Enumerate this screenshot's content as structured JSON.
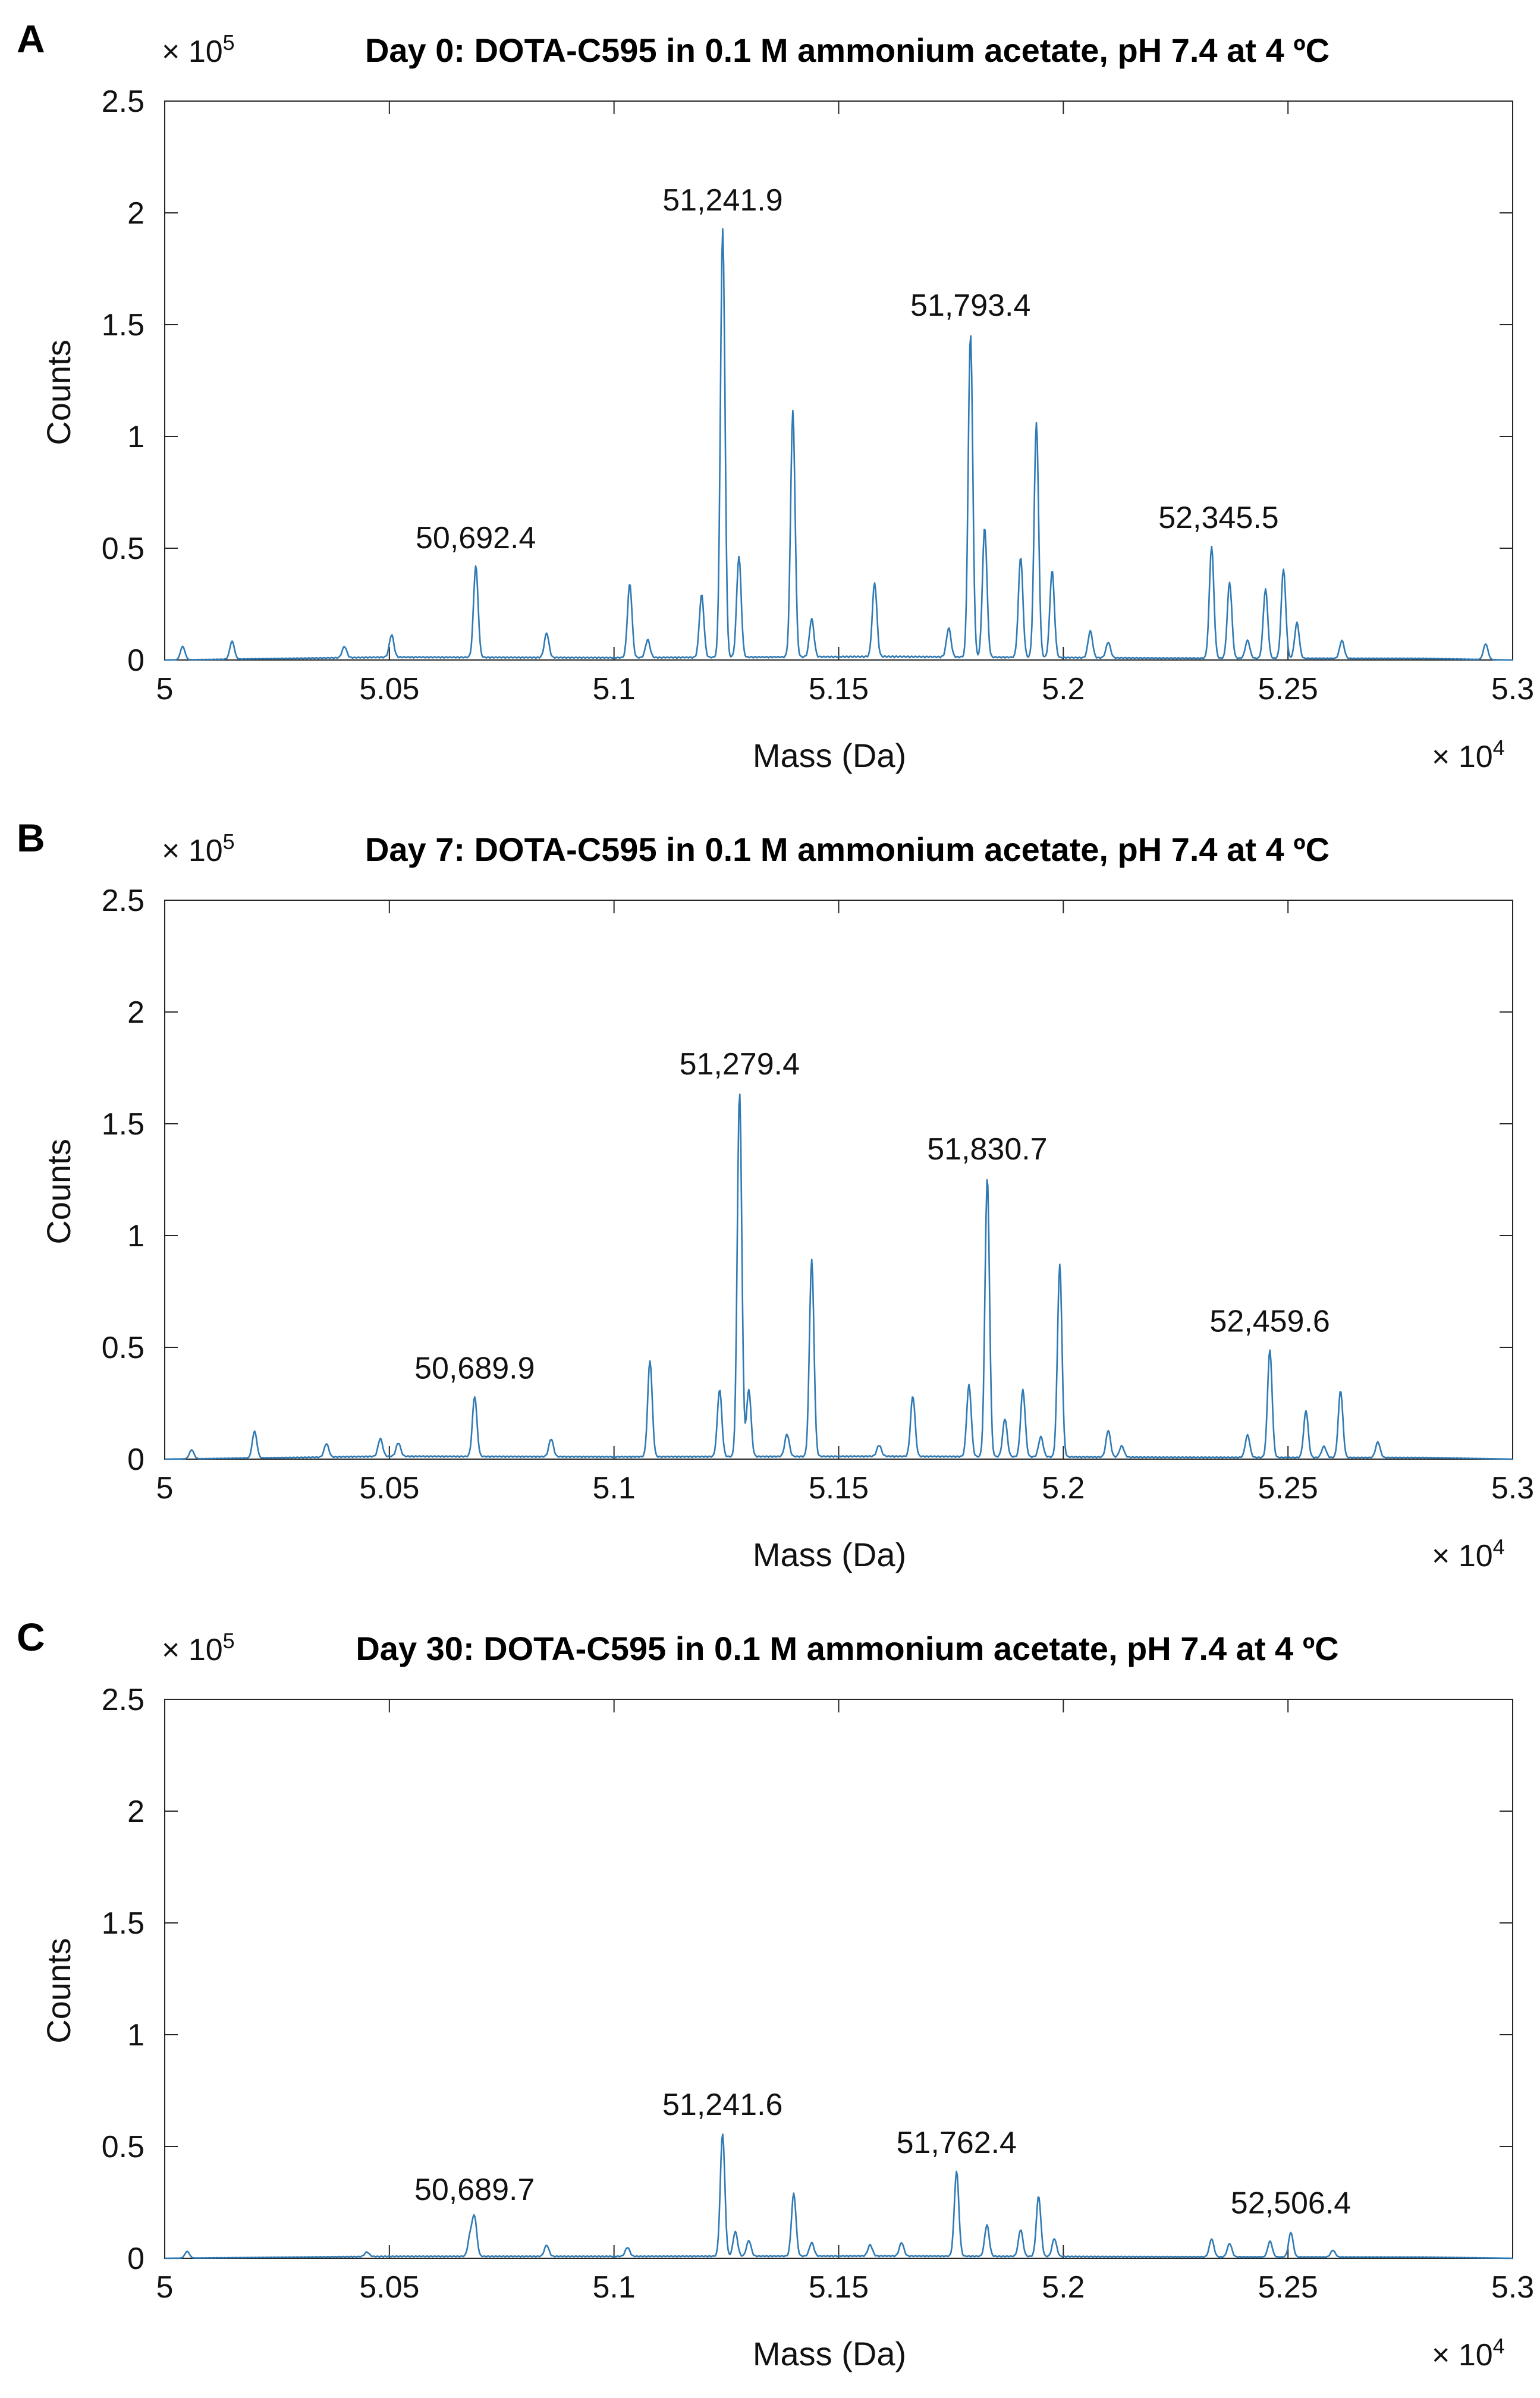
{
  "figure": {
    "panels": [
      {
        "letter": "A",
        "title": "Day 0: DOTA-C595 in 0.1 M ammonium acetate, pH 7.4 at 4 ºC",
        "y_multiplier": "× 10",
        "y_exponent": "5",
        "x_multiplier": "× 10",
        "x_exponent": "4",
        "xlabel": "Mass (Da)",
        "ylabel": "Counts"
      },
      {
        "letter": "B",
        "title": "Day 7: DOTA-C595 in 0.1 M ammonium acetate, pH 7.4 at 4 ºC",
        "y_multiplier": "× 10",
        "y_exponent": "5",
        "x_multiplier": "× 10",
        "x_exponent": "4",
        "xlabel": "Mass (Da)",
        "ylabel": "Counts"
      },
      {
        "letter": "C",
        "title": "Day 30: DOTA-C595 in 0.1 M ammonium acetate, pH 7.4 at 4 ºC",
        "y_multiplier": "× 10",
        "y_exponent": "5",
        "x_multiplier": "× 10",
        "x_exponent": "4",
        "xlabel": "Mass (Da)",
        "ylabel": "Counts"
      }
    ]
  },
  "style": {
    "line_color": "#2f7ab4",
    "axis_color": "#262626"
  },
  "chart_data": [
    {
      "type": "line",
      "title": "Day 0: DOTA-C595 in 0.1 M ammonium acetate, pH 7.4 at 4 ºC",
      "xlabel": "Mass (Da)",
      "ylabel": "Counts",
      "xlim": [
        50000,
        53000
      ],
      "ylim": [
        0,
        250000
      ],
      "x_ticks": [
        "5",
        "5.05",
        "5.1",
        "5.15",
        "5.2",
        "5.25",
        "5.3"
      ],
      "y_ticks": [
        "0",
        "0.5",
        "1",
        "1.5",
        "2",
        "2.5"
      ],
      "grid": false,
      "baseline": [
        [
          50000,
          0
        ],
        [
          50500,
          1500
        ],
        [
          51000,
          1200
        ],
        [
          51600,
          1800
        ],
        [
          52200,
          1000
        ],
        [
          52800,
          800
        ],
        [
          53000,
          0
        ]
      ],
      "peaks": [
        {
          "x": 50040,
          "y": 6000
        },
        {
          "x": 50150,
          "y": 8000
        },
        {
          "x": 50400,
          "y": 5000
        },
        {
          "x": 50505,
          "y": 10000
        },
        {
          "x": 50692.4,
          "y": 41000
        },
        {
          "x": 50850,
          "y": 11000
        },
        {
          "x": 51035,
          "y": 33000
        },
        {
          "x": 51075,
          "y": 8000
        },
        {
          "x": 51195,
          "y": 28000
        },
        {
          "x": 51241.9,
          "y": 192000
        },
        {
          "x": 51278,
          "y": 45000
        },
        {
          "x": 51398,
          "y": 110000
        },
        {
          "x": 51440,
          "y": 17000
        },
        {
          "x": 51580,
          "y": 33000
        },
        {
          "x": 51745,
          "y": 13000
        },
        {
          "x": 51793.4,
          "y": 145000
        },
        {
          "x": 51825,
          "y": 58000
        },
        {
          "x": 51905,
          "y": 45000
        },
        {
          "x": 51940,
          "y": 105000
        },
        {
          "x": 51975,
          "y": 39000
        },
        {
          "x": 52060,
          "y": 12000
        },
        {
          "x": 52100,
          "y": 7000
        },
        {
          "x": 52330,
          "y": 50000
        },
        {
          "x": 52370,
          "y": 34000
        },
        {
          "x": 52410,
          "y": 8000
        },
        {
          "x": 52450,
          "y": 31000
        },
        {
          "x": 52490,
          "y": 40000
        },
        {
          "x": 52520,
          "y": 16000
        },
        {
          "x": 52620,
          "y": 8000
        },
        {
          "x": 52940,
          "y": 7000
        }
      ],
      "annotations": [
        {
          "text": "50,692.4",
          "x": 50692.4,
          "y": 41000
        },
        {
          "text": "51,241.9",
          "x": 51241.9,
          "y": 192000
        },
        {
          "text": "51,793.4",
          "x": 51793.4,
          "y": 145000
        },
        {
          "text": "52,345.5",
          "x": 52345.5,
          "y": 50000
        }
      ]
    },
    {
      "type": "line",
      "title": "Day 7: DOTA-C595 in 0.1 M ammonium acetate, pH 7.4 at 4 ºC",
      "xlabel": "Mass (Da)",
      "ylabel": "Counts",
      "xlim": [
        50000,
        53000
      ],
      "ylim": [
        0,
        250000
      ],
      "x_ticks": [
        "5",
        "5.05",
        "5.1",
        "5.15",
        "5.2",
        "5.25",
        "5.3"
      ],
      "y_ticks": [
        "0",
        "0.5",
        "1",
        "1.5",
        "2",
        "2.5"
      ],
      "grid": false,
      "baseline": [
        [
          50000,
          0
        ],
        [
          50500,
          1500
        ],
        [
          51000,
          1200
        ],
        [
          51600,
          1500
        ],
        [
          52200,
          1000
        ],
        [
          52800,
          800
        ],
        [
          53000,
          0
        ]
      ],
      "peaks": [
        {
          "x": 50060,
          "y": 4000
        },
        {
          "x": 50200,
          "y": 12000
        },
        {
          "x": 50360,
          "y": 6000
        },
        {
          "x": 50480,
          "y": 8000
        },
        {
          "x": 50520,
          "y": 6000
        },
        {
          "x": 50689.9,
          "y": 27000
        },
        {
          "x": 50860,
          "y": 8000
        },
        {
          "x": 51080,
          "y": 43000
        },
        {
          "x": 51235,
          "y": 30000
        },
        {
          "x": 51279.4,
          "y": 163000
        },
        {
          "x": 51300,
          "y": 30000
        },
        {
          "x": 51385,
          "y": 10000
        },
        {
          "x": 51440,
          "y": 88000
        },
        {
          "x": 51590,
          "y": 5000
        },
        {
          "x": 51665,
          "y": 27000
        },
        {
          "x": 51790,
          "y": 32000
        },
        {
          "x": 51830.7,
          "y": 125000
        },
        {
          "x": 51870,
          "y": 17000
        },
        {
          "x": 51910,
          "y": 30000
        },
        {
          "x": 51950,
          "y": 9000
        },
        {
          "x": 51992,
          "y": 86000
        },
        {
          "x": 52100,
          "y": 12000
        },
        {
          "x": 52130,
          "y": 5000
        },
        {
          "x": 52410,
          "y": 10000
        },
        {
          "x": 52459.6,
          "y": 48000
        },
        {
          "x": 52540,
          "y": 21000
        },
        {
          "x": 52580,
          "y": 5000
        },
        {
          "x": 52617,
          "y": 30000
        },
        {
          "x": 52700,
          "y": 7000
        }
      ],
      "annotations": [
        {
          "text": "50,689.9",
          "x": 50689.9,
          "y": 27000
        },
        {
          "text": "51,279.4",
          "x": 51279.4,
          "y": 163000
        },
        {
          "text": "51,830.7",
          "x": 51830.7,
          "y": 125000
        },
        {
          "text": "52,459.6",
          "x": 52459.6,
          "y": 48000
        }
      ]
    },
    {
      "type": "line",
      "title": "Day 30: DOTA-C595 in 0.1 M ammonium acetate, pH 7.4 at 4 ºC",
      "xlabel": "Mass (Da)",
      "ylabel": "Counts",
      "xlim": [
        50000,
        53000
      ],
      "ylim": [
        0,
        250000
      ],
      "x_ticks": [
        "5",
        "5.05",
        "5.1",
        "5.15",
        "5.2",
        "5.25",
        "5.3"
      ],
      "y_ticks": [
        "0",
        "0.5",
        "1",
        "1.5",
        "2",
        "2.5"
      ],
      "grid": false,
      "baseline": [
        [
          50000,
          0
        ],
        [
          50500,
          1000
        ],
        [
          51000,
          1000
        ],
        [
          51600,
          1200
        ],
        [
          52200,
          800
        ],
        [
          52800,
          600
        ],
        [
          53000,
          0
        ]
      ],
      "peaks": [
        {
          "x": 50050,
          "y": 3000
        },
        {
          "x": 50450,
          "y": 2000
        },
        {
          "x": 50680,
          "y": 9000
        },
        {
          "x": 50689.7,
          "y": 17000
        },
        {
          "x": 50850,
          "y": 5000
        },
        {
          "x": 51030,
          "y": 4000
        },
        {
          "x": 51241.6,
          "y": 55000
        },
        {
          "x": 51270,
          "y": 11000
        },
        {
          "x": 51300,
          "y": 7000
        },
        {
          "x": 51400,
          "y": 28000
        },
        {
          "x": 51440,
          "y": 6000
        },
        {
          "x": 51570,
          "y": 5000
        },
        {
          "x": 51640,
          "y": 6000
        },
        {
          "x": 51762.4,
          "y": 38000
        },
        {
          "x": 51830,
          "y": 14000
        },
        {
          "x": 51905,
          "y": 12000
        },
        {
          "x": 51945,
          "y": 27000
        },
        {
          "x": 51980,
          "y": 8000
        },
        {
          "x": 52330,
          "y": 8000
        },
        {
          "x": 52370,
          "y": 6000
        },
        {
          "x": 52460,
          "y": 7000
        },
        {
          "x": 52506.4,
          "y": 11000
        },
        {
          "x": 52600,
          "y": 3000
        }
      ],
      "annotations": [
        {
          "text": "50,689.7",
          "x": 50689.7,
          "y": 17000
        },
        {
          "text": "51,241.6",
          "x": 51241.6,
          "y": 55000
        },
        {
          "text": "51,762.4",
          "x": 51762.4,
          "y": 38000
        },
        {
          "text": "52,506.4",
          "x": 52506.4,
          "y": 11000
        }
      ]
    }
  ]
}
